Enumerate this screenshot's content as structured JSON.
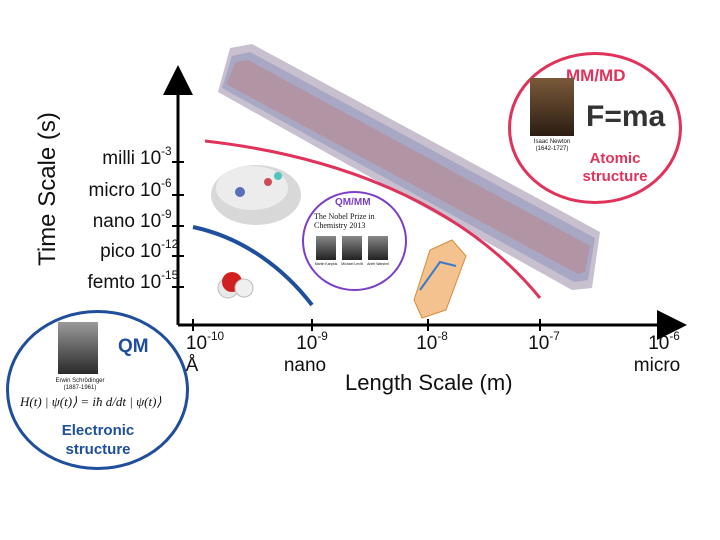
{
  "yaxis": {
    "label": "Time Scale (s)",
    "ticks": [
      {
        "word": "milli",
        "base": "10",
        "exp": "-3"
      },
      {
        "word": "micro",
        "base": "10",
        "exp": "-6"
      },
      {
        "word": "nano",
        "base": "10",
        "exp": "-9"
      },
      {
        "word": "pico",
        "base": "10",
        "exp": "-12"
      },
      {
        "word": "femto",
        "base": "10",
        "exp": "-15"
      }
    ]
  },
  "xaxis": {
    "label": "Length Scale (m)",
    "ticks": [
      {
        "base": "10",
        "exp": "-10",
        "sub": "Å"
      },
      {
        "base": "10",
        "exp": "-9",
        "sub": "nano"
      },
      {
        "base": "10",
        "exp": "-8",
        "sub": ""
      },
      {
        "base": "10",
        "exp": "-7",
        "sub": ""
      },
      {
        "base": "10",
        "exp": "-6",
        "sub": "micro"
      }
    ]
  },
  "mmmd": {
    "title": "MM/MD",
    "equation": "F=ma",
    "caption_line1": "Atomic",
    "caption_line2": "structure",
    "portrait_name": "Isaac Newton",
    "portrait_years": "(1642-1727)"
  },
  "qmmm": {
    "title": "QM/MM",
    "headline_line1": "The Nobel Prize in",
    "headline_line2": "Chemistry 2013",
    "laureates": [
      "Martin Karplus",
      "Michael Levitt",
      "Arieh Warshel"
    ]
  },
  "qm": {
    "title": "QM",
    "portrait_name": "Erwin Schrödinger",
    "portrait_years": "(1887-1961)",
    "equation": "H(t) | ψ(t)⟩ = iħ d/dt | ψ(t)⟩",
    "caption_line1": "Electronic",
    "caption_line2": "structure"
  },
  "colors": {
    "qm": "#1f4f9c",
    "qmmm": "#7b3ec6",
    "mmmd": "#e0325a",
    "axis": "#000000"
  }
}
